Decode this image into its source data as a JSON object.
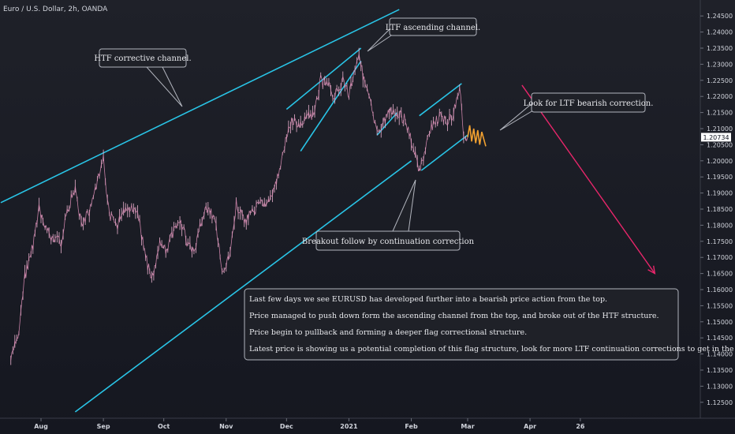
{
  "header": {
    "title": "Euro / U.S. Dollar, 2h, OANDA"
  },
  "chart_data": {
    "type": "line",
    "title": "Euro / U.S. Dollar, 2h, OANDA",
    "symbol": "EURUSD",
    "timeframe": "2h",
    "broker": "OANDA",
    "ylim": [
      1.1225,
      1.2475
    ],
    "y_ticks": [
      "1.24500",
      "1.24000",
      "1.23500",
      "1.23000",
      "1.22500",
      "1.22000",
      "1.21500",
      "1.21000",
      "1.20500",
      "1.20000",
      "1.19500",
      "1.19000",
      "1.18500",
      "1.18000",
      "1.17500",
      "1.17000",
      "1.16500",
      "1.16000",
      "1.15500",
      "1.15000",
      "1.14500",
      "1.14000",
      "1.13500",
      "1.13000",
      "1.12500"
    ],
    "x_ticks": [
      {
        "label": "Aug",
        "date": "2020-08-01"
      },
      {
        "label": "Sep",
        "date": "2020-09-01"
      },
      {
        "label": "Oct",
        "date": "2020-10-01"
      },
      {
        "label": "Nov",
        "date": "2020-11-01"
      },
      {
        "label": "Dec",
        "date": "2020-12-01"
      },
      {
        "label": "2021",
        "date": "2021-01-01"
      },
      {
        "label": "Feb",
        "date": "2021-02-01"
      },
      {
        "label": "Mar",
        "date": "2021-03-01"
      },
      {
        "label": "Apr",
        "date": "2021-04-01"
      },
      {
        "label": "26",
        "date": "2021-04-26"
      }
    ],
    "last_price": "1.20734",
    "series": [
      {
        "points": [
          [
            "2020-07-17",
            1.138
          ],
          [
            "2020-07-21",
            1.147
          ],
          [
            "2020-07-24",
            1.164
          ],
          [
            "2020-07-28",
            1.174
          ],
          [
            "2020-07-31",
            1.185
          ],
          [
            "2020-08-04",
            1.178
          ],
          [
            "2020-08-07",
            1.176
          ],
          [
            "2020-08-11",
            1.175
          ],
          [
            "2020-08-14",
            1.184
          ],
          [
            "2020-08-18",
            1.192
          ],
          [
            "2020-08-21",
            1.18
          ],
          [
            "2020-08-25",
            1.184
          ],
          [
            "2020-08-28",
            1.191
          ],
          [
            "2020-09-01",
            1.2
          ],
          [
            "2020-09-04",
            1.183
          ],
          [
            "2020-09-08",
            1.18
          ],
          [
            "2020-09-11",
            1.185
          ],
          [
            "2020-09-15",
            1.186
          ],
          [
            "2020-09-18",
            1.184
          ],
          [
            "2020-09-22",
            1.17
          ],
          [
            "2020-09-25",
            1.163
          ],
          [
            "2020-09-29",
            1.174
          ],
          [
            "2020-10-02",
            1.172
          ],
          [
            "2020-10-06",
            1.178
          ],
          [
            "2020-10-09",
            1.182
          ],
          [
            "2020-10-13",
            1.174
          ],
          [
            "2020-10-16",
            1.172
          ],
          [
            "2020-10-20",
            1.182
          ],
          [
            "2020-10-23",
            1.186
          ],
          [
            "2020-10-27",
            1.18
          ],
          [
            "2020-10-30",
            1.165
          ],
          [
            "2020-11-03",
            1.17
          ],
          [
            "2020-11-06",
            1.187
          ],
          [
            "2020-11-10",
            1.181
          ],
          [
            "2020-11-13",
            1.183
          ],
          [
            "2020-11-17",
            1.186
          ],
          [
            "2020-11-20",
            1.187
          ],
          [
            "2020-11-24",
            1.189
          ],
          [
            "2020-11-27",
            1.196
          ],
          [
            "2020-12-01",
            1.207
          ],
          [
            "2020-12-04",
            1.213
          ],
          [
            "2020-12-08",
            1.211
          ],
          [
            "2020-12-11",
            1.213
          ],
          [
            "2020-12-15",
            1.215
          ],
          [
            "2020-12-18",
            1.225
          ],
          [
            "2020-12-22",
            1.223
          ],
          [
            "2020-12-25",
            1.22
          ],
          [
            "2020-12-29",
            1.225
          ],
          [
            "2021-01-01",
            1.221
          ],
          [
            "2021-01-06",
            1.234
          ],
          [
            "2021-01-08",
            1.226
          ],
          [
            "2021-01-12",
            1.217
          ],
          [
            "2021-01-15",
            1.208
          ],
          [
            "2021-01-19",
            1.213
          ],
          [
            "2021-01-22",
            1.216
          ],
          [
            "2021-01-26",
            1.214
          ],
          [
            "2021-01-29",
            1.213
          ],
          [
            "2021-02-02",
            1.204
          ],
          [
            "2021-02-05",
            1.196
          ],
          [
            "2021-02-08",
            1.204
          ],
          [
            "2021-02-12",
            1.212
          ],
          [
            "2021-02-16",
            1.214
          ],
          [
            "2021-02-19",
            1.212
          ],
          [
            "2021-02-22",
            1.215
          ],
          [
            "2021-02-25",
            1.223
          ],
          [
            "2021-02-27",
            1.208
          ],
          [
            "2021-03-01",
            1.2073
          ]
        ]
      }
    ],
    "projection": {
      "color": "#f0a030",
      "points": [
        [
          "2021-03-01",
          1.2073
        ],
        [
          "2021-03-02",
          1.211
        ],
        [
          "2021-03-03",
          1.206
        ],
        [
          "2021-03-04",
          1.21
        ],
        [
          "2021-03-05",
          1.2055
        ],
        [
          "2021-03-06",
          1.2095
        ],
        [
          "2021-03-07",
          1.205
        ],
        [
          "2021-03-08",
          1.209
        ],
        [
          "2021-03-10",
          1.2045
        ]
      ]
    },
    "trendlines": [
      {
        "color": "#29c4e6",
        "from": [
          "2020-07-12",
          1.187
        ],
        "to": [
          "2021-01-26",
          1.247
        ]
      },
      {
        "color": "#29c4e6",
        "from": [
          "2020-08-18",
          1.122
        ],
        "to": [
          "2021-02-01",
          1.2
        ]
      },
      {
        "color": "#29c4e6",
        "from": [
          "2020-12-01",
          1.216
        ],
        "to": [
          "2021-01-07",
          1.235
        ]
      },
      {
        "color": "#29c4e6",
        "from": [
          "2020-12-08",
          1.203
        ],
        "to": [
          "2021-01-07",
          1.231
        ]
      },
      {
        "color": "#29c4e6",
        "from": [
          "2021-01-15",
          1.208
        ],
        "to": [
          "2021-01-25",
          1.215
        ]
      },
      {
        "color": "#29c4e6",
        "from": [
          "2021-02-05",
          1.214
        ],
        "to": [
          "2021-02-26",
          1.224
        ]
      },
      {
        "color": "#29c4e6",
        "from": [
          "2021-02-06",
          1.197
        ],
        "to": [
          "2021-03-01",
          1.208
        ]
      }
    ],
    "arrow": {
      "color": "#e9266b",
      "from": [
        "2021-03-28",
        1.2235
      ],
      "to": [
        "2021-06-02",
        1.165
      ]
    },
    "colors": {
      "background": "#1c1e27",
      "candles": "#e6a8c8",
      "channel": "#29c4e6",
      "arrow": "#e9266b",
      "projection": "#f0a030",
      "last_price_tag": "#ffffff"
    }
  },
  "callouts": {
    "htf": "HTF corrective channel.",
    "ltf_channel": "LTF ascending channel.",
    "ltf_correction": "Look for LTF bearish correction.",
    "breakout": "Breakout follow by continuation correction"
  },
  "notes": [
    "Last few days we see EURUSD has developed further into a bearish price action from the top.",
    "Price managed to push down form the ascending channel from the top, and broke out of the HTF structure.",
    "Price begin to pullback and forming a deeper flag correctional structure.",
    "Latest price is showing us a potential completion of this flag structure, look for more LTF continuation corrections to get in the on the sell."
  ]
}
